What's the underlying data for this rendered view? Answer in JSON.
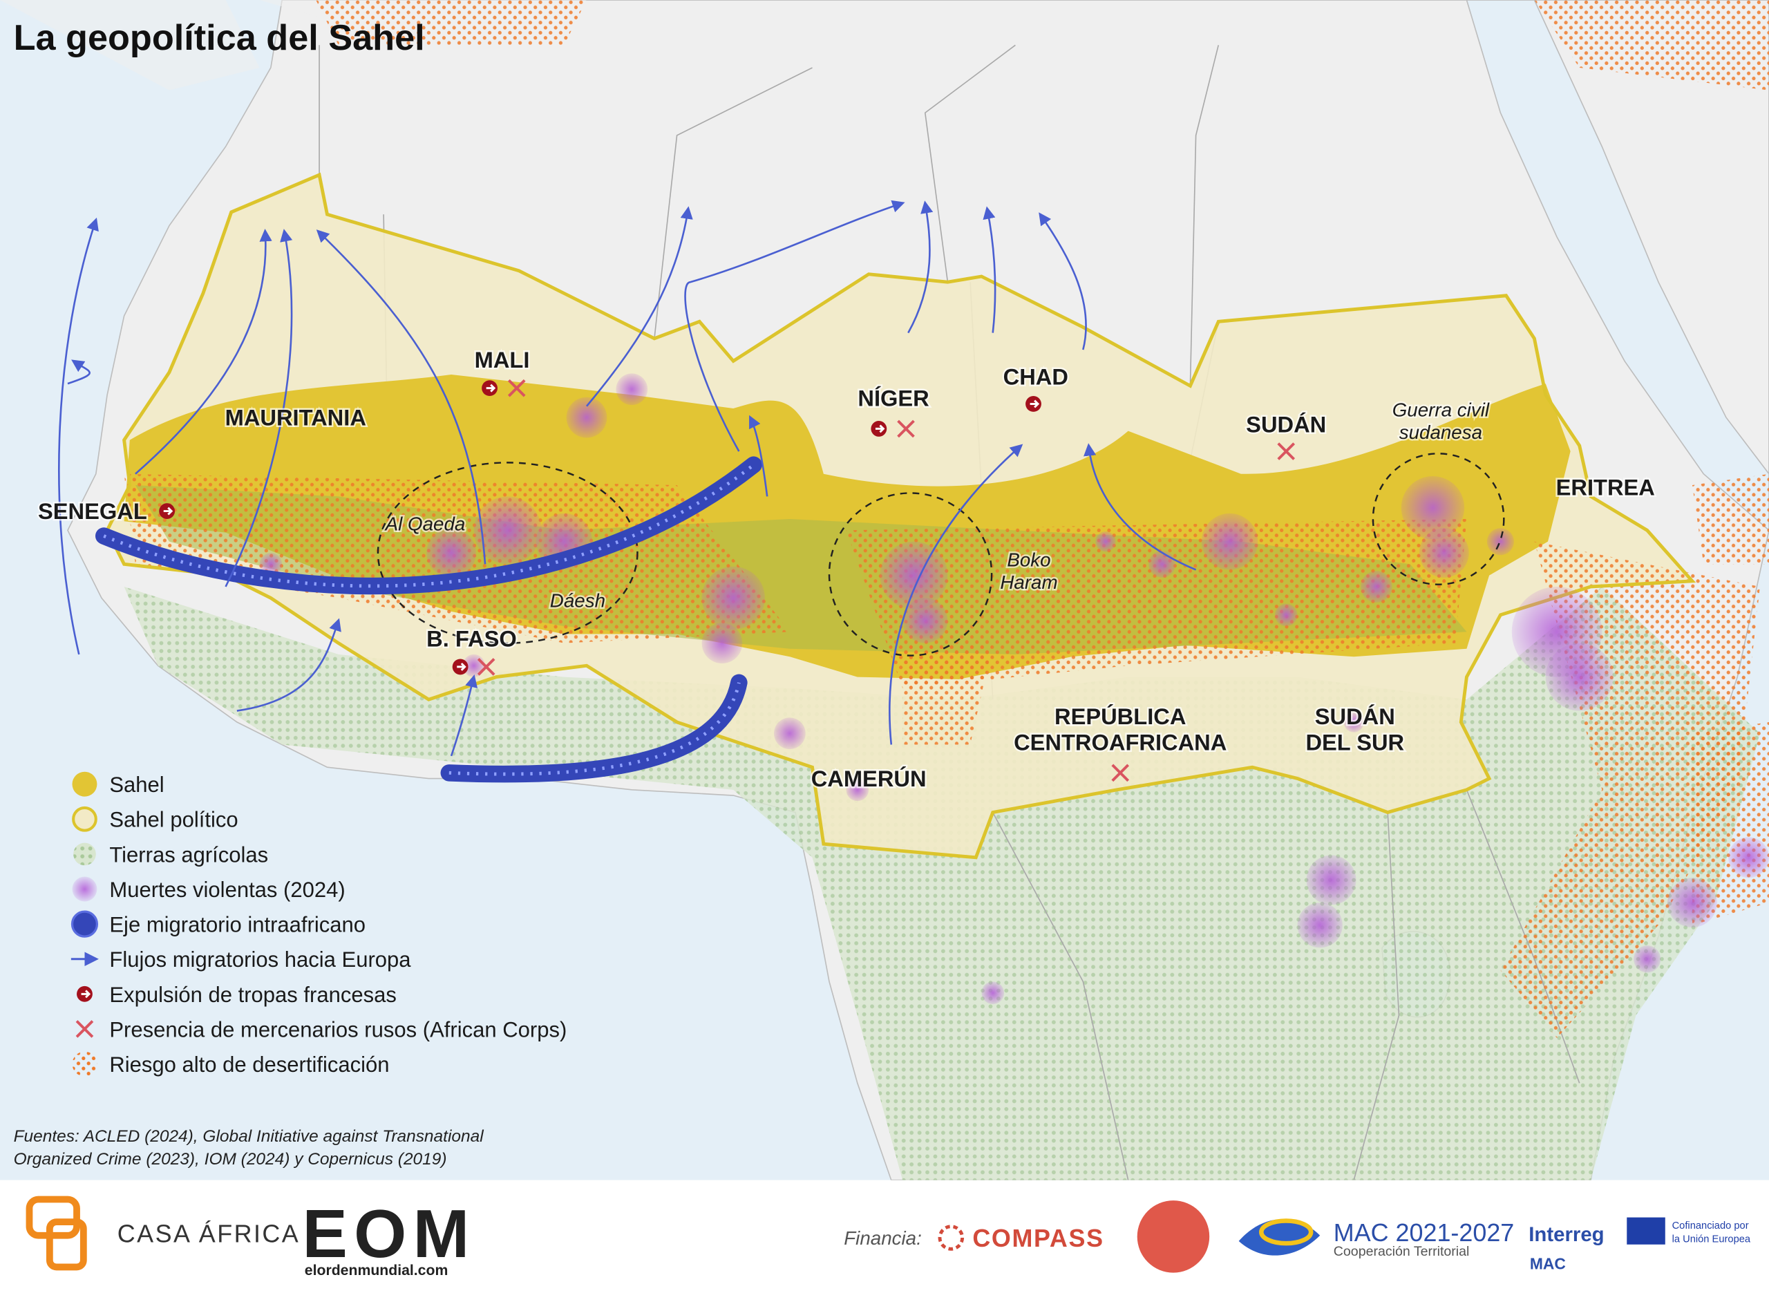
{
  "title": "La geopolítica del Sahel",
  "countries": [
    {
      "lines": [
        "MALI"
      ]
    },
    {
      "lines": [
        "MAURITANIA"
      ]
    },
    {
      "lines": [
        "SENEGAL"
      ]
    },
    {
      "lines": [
        "NÍGER"
      ]
    },
    {
      "lines": [
        "CHAD"
      ]
    },
    {
      "lines": [
        "SUDÁN"
      ]
    },
    {
      "lines": [
        "ERITREA"
      ]
    },
    {
      "lines": [
        "B. FASO"
      ]
    },
    {
      "lines": [
        "CAMERÚN"
      ]
    },
    {
      "lines": [
        "REPÚBLICA",
        "CENTROAFRICANA"
      ]
    },
    {
      "lines": [
        "SUDÁN",
        "DEL SUR"
      ]
    }
  ],
  "annotations": [
    {
      "lines": [
        "Al Qaeda"
      ]
    },
    {
      "lines": [
        "Dáesh"
      ]
    },
    {
      "lines": [
        "Boko",
        "Haram"
      ]
    },
    {
      "lines": [
        "Guerra civil",
        "sudanesa"
      ]
    }
  ],
  "legend": [
    "Sahel",
    "Sahel político",
    "Tierras agrícolas",
    "Muertes violentas (2024)",
    "Eje migratorio intraafricano",
    "Flujos migratorios hacia Europa",
    "Expulsión de tropas francesas",
    "Presencia de mercenarios rusos (African Corps)",
    "Riesgo alto de desertificación"
  ],
  "sources": [
    "Fuentes: ACLED (2024), Global Initiative against Transnational",
    "Organized Crime (2023), IOM (2024) y Copernicus (2019)"
  ],
  "footer": {
    "casa_africa": "CASA ÁFRICA",
    "eom": "EOM",
    "eom_url": "elordenmundial.com",
    "financia": "Financia:",
    "compass": "COMPASS",
    "mac": "MAC 2021-2027",
    "mac_sub": "Cooperación Territorial",
    "interreg": "Interreg",
    "interreg_sub": "MAC",
    "eu": [
      "Cofinanciado por",
      "la Unión Europea"
    ]
  }
}
